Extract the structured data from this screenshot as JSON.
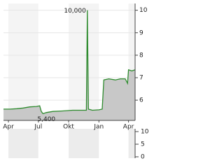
{
  "chart_data": [
    {
      "type": "area",
      "line_color": "#2e8b2e",
      "fill_color": "#c8c8c8",
      "x": [
        0,
        20,
        40,
        60,
        80,
        100,
        110,
        115,
        120,
        130,
        150,
        180,
        210,
        240,
        252,
        255,
        258,
        270,
        290,
        300,
        305,
        320,
        340,
        355,
        370,
        377,
        380,
        390,
        400
      ],
      "values": [
        5.6,
        5.6,
        5.62,
        5.65,
        5.7,
        5.72,
        5.75,
        5.5,
        5.4,
        5.45,
        5.5,
        5.52,
        5.55,
        5.55,
        5.55,
        10.0,
        5.6,
        5.55,
        5.57,
        5.6,
        6.9,
        6.95,
        6.9,
        6.95,
        6.95,
        6.75,
        7.35,
        7.3,
        7.35
      ],
      "annotations": [
        "10,000",
        "5,400"
      ],
      "xlim": [
        0,
        400
      ],
      "xticks": [
        {
          "value": 15,
          "label": "Apr"
        },
        {
          "value": 106,
          "label": "Jul"
        },
        {
          "value": 198,
          "label": "Okt"
        },
        {
          "value": 290,
          "label": "Jan"
        },
        {
          "value": 380,
          "label": "Apr"
        }
      ],
      "ylim": [
        5.1,
        10.3
      ],
      "yticks": [
        6,
        7,
        8,
        9,
        10
      ]
    },
    {
      "type": "bar",
      "ylim": [
        0,
        10
      ],
      "yticks": [
        10,
        5,
        0
      ]
    }
  ]
}
